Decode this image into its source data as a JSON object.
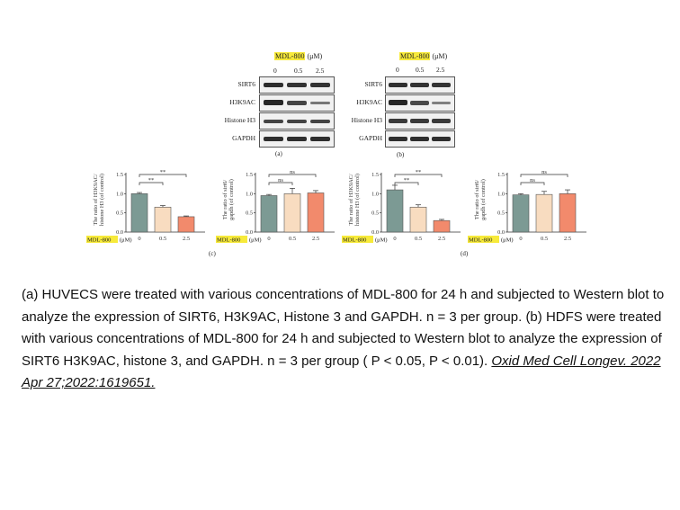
{
  "figure": {
    "blot_a": {
      "treatment": "MDL-800",
      "unit": "(μM)",
      "concentrations": [
        "0",
        "0.5",
        "2.5"
      ],
      "rows": [
        "SIRT6",
        "H3K9AC",
        "Histone H3",
        "GAPDH"
      ],
      "letter": "(a)"
    },
    "blot_b": {
      "treatment": "MDL-800",
      "unit": "(μM)",
      "concentrations": [
        "0",
        "0.5",
        "2.5"
      ],
      "rows": [
        "SIRT6",
        "H3K9AC",
        "Histone H3",
        "GAPDH"
      ],
      "letter": "(b)"
    },
    "panel_c_letter": "(c)",
    "panel_d_letter": "(d)",
    "bar_colors": [
      "#7c9a94",
      "#f8dcc0",
      "#f28a6c"
    ]
  },
  "chart_data": [
    {
      "type": "bar",
      "panel": "c-left",
      "ylabel": "The ratio of H3K9AC/ histone H3 (of control)",
      "xlabel_treatment": "MDL-800",
      "xlabel_unit": "(μM)",
      "categories": [
        "0",
        "0.5",
        "2.5"
      ],
      "values": [
        1.0,
        0.65,
        0.4
      ],
      "errors": [
        0.03,
        0.04,
        0.02
      ],
      "yticks": [
        "0.0",
        "0.5",
        "1.0",
        "1.5"
      ],
      "ylim": [
        0,
        1.5
      ],
      "significance": [
        {
          "from": 0,
          "to": 1,
          "label": "**"
        },
        {
          "from": 0,
          "to": 2,
          "label": "**"
        }
      ]
    },
    {
      "type": "bar",
      "panel": "c-right",
      "ylabel": "The ratio of sirt6/ gapdh (of control)",
      "xlabel_treatment": "MDL-800",
      "xlabel_unit": "(μM)",
      "categories": [
        "0",
        "0.5",
        "2.5"
      ],
      "values": [
        0.95,
        1.0,
        1.02
      ],
      "errors": [
        0.03,
        0.14,
        0.06
      ],
      "yticks": [
        "0.0",
        "0.5",
        "1.0",
        "1.5"
      ],
      "ylim": [
        0,
        1.5
      ],
      "significance": [
        {
          "from": 0,
          "to": 1,
          "label": "ns"
        },
        {
          "from": 0,
          "to": 2,
          "label": "ns"
        }
      ]
    },
    {
      "type": "bar",
      "panel": "d-left",
      "ylabel": "The ratio of H3K9AC/ histone H3 (of control)",
      "xlabel_treatment": "MDL-800",
      "xlabel_unit": "(μM)",
      "categories": [
        "0",
        "0.5",
        "2.5"
      ],
      "values": [
        1.1,
        0.65,
        0.3
      ],
      "errors": [
        0.12,
        0.06,
        0.03
      ],
      "yticks": [
        "0.0",
        "0.5",
        "1.0",
        "1.5"
      ],
      "ylim": [
        0,
        1.5
      ],
      "significance": [
        {
          "from": 0,
          "to": 1,
          "label": "**"
        },
        {
          "from": 0,
          "to": 2,
          "label": "**"
        }
      ]
    },
    {
      "type": "bar",
      "panel": "d-right",
      "ylabel": "The ratio of sirt6/ gapdh (of control)",
      "xlabel_treatment": "MDL-800",
      "xlabel_unit": "(μM)",
      "categories": [
        "0",
        "0.5",
        "2.5"
      ],
      "values": [
        0.97,
        0.98,
        1.0
      ],
      "errors": [
        0.03,
        0.08,
        0.1
      ],
      "yticks": [
        "0.0",
        "0.5",
        "1.0",
        "1.5"
      ],
      "ylim": [
        0,
        1.5
      ],
      "significance": [
        {
          "from": 0,
          "to": 1,
          "label": "ns"
        },
        {
          "from": 0,
          "to": 2,
          "label": "ns"
        }
      ]
    }
  ],
  "caption": {
    "text": "(a) HUVECS were treated with various concentrations of MDL-800 for 24 h and subjected to Western blot to analyze the expression of SIRT6, H3K9AC, Histone 3 and GAPDH. n = 3 per group. (b) HDFS were treated with various concentrations of MDL-800 for 24 h and subjected to Western blot to analyze the expression of SIRT6 H3K9AC, histone 3, and GAPDH. n = 3 per group ( P < 0.05,   P < 0.01). ",
    "citation": "Oxid Med Cell Longev. 2022 Apr 27;2022:1619651."
  }
}
